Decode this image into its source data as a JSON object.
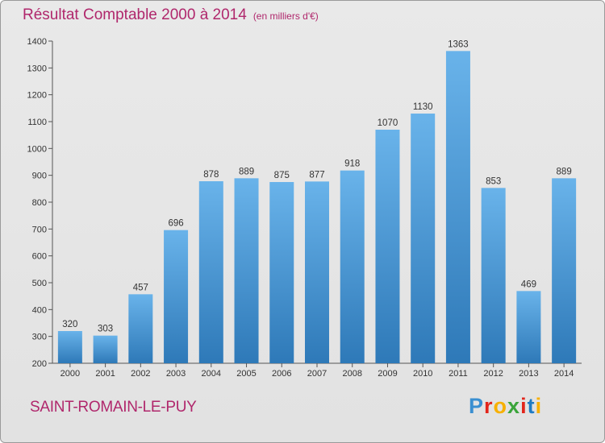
{
  "title": "Résultat Comptable 2000 à 2014",
  "unit": "(en milliers d'€)",
  "place": "SAINT-ROMAIN-LE-PUY",
  "logo": {
    "text": "Proxiti",
    "colors": [
      "#3a8fd1",
      "#e2251b",
      "#f7b000",
      "#3aa43a",
      "#e2251b",
      "#1f7bc4",
      "#f7b000"
    ]
  },
  "colors": {
    "bar_top": "#69b3ea",
    "bar_bottom": "#2e79b8",
    "title": "#b0276c"
  },
  "chart_data": {
    "type": "bar",
    "title": "Résultat Comptable 2000 à 2014",
    "subtitle": "(en milliers d'€)",
    "xlabel": "",
    "ylabel": "",
    "categories": [
      "2000",
      "2001",
      "2002",
      "2003",
      "2004",
      "2005",
      "2006",
      "2007",
      "2008",
      "2009",
      "2010",
      "2011",
      "2012",
      "2013",
      "2014"
    ],
    "values": [
      320,
      303,
      457,
      696,
      878,
      889,
      875,
      877,
      918,
      1070,
      1130,
      1363,
      853,
      469,
      889
    ],
    "ylim": [
      200,
      1400
    ],
    "yticks": [
      200,
      300,
      400,
      500,
      600,
      700,
      800,
      900,
      1000,
      1100,
      1200,
      1300,
      1400
    ],
    "grid": false,
    "legend": "none"
  }
}
